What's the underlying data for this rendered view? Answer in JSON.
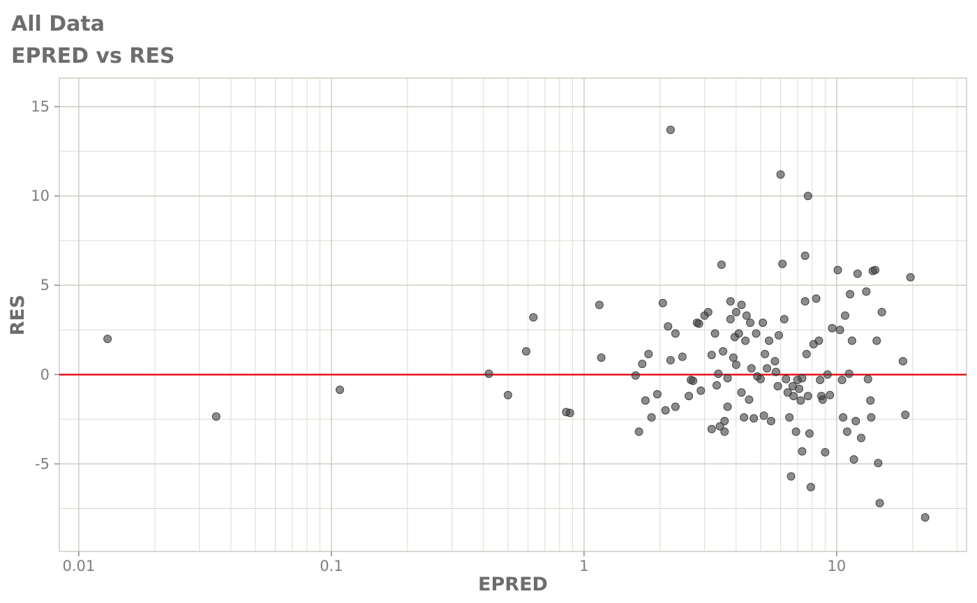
{
  "page": {
    "background": "#ffffff"
  },
  "chart_data": {
    "type": "scatter",
    "title": "All Data",
    "subtitle": "EPRED vs RES",
    "xlabel": "EPRED",
    "ylabel": "RES",
    "x_scale": "log10",
    "x_ticks": [
      0.01,
      0.1,
      1,
      10
    ],
    "x_tick_labels": [
      "0.01",
      "0.1",
      "1",
      "10"
    ],
    "y_ticks": [
      -5,
      0,
      5,
      10,
      15
    ],
    "y_tick_labels": [
      "-5",
      "0",
      "5",
      "10",
      "15"
    ],
    "x_range_log10": [
      -2.077,
      1.514
    ],
    "y_range": [
      -9.9,
      16.6
    ],
    "grid": {
      "major_color": "#ccc8bd",
      "minor_color": "#dedacf",
      "show": true
    },
    "legend": "none",
    "reference_line": {
      "y": 0,
      "color": "#e8111b",
      "width": 2.5
    },
    "point_style": {
      "fill": "#404040",
      "opacity": 0.6,
      "radius": 5.5
    },
    "text_colors": {
      "title": "#6d6d6d",
      "axis_label": "#6d6d6d",
      "tick_label": "#7e7e7e"
    },
    "points": [
      [
        0.013,
        2.0
      ],
      [
        0.035,
        -2.35
      ],
      [
        0.108,
        -0.85
      ],
      [
        0.42,
        0.05
      ],
      [
        0.5,
        -1.15
      ],
      [
        0.59,
        1.3
      ],
      [
        0.63,
        3.2
      ],
      [
        0.85,
        -2.1
      ],
      [
        0.88,
        -2.15
      ],
      [
        1.15,
        3.9
      ],
      [
        1.17,
        0.95
      ],
      [
        1.6,
        -0.05
      ],
      [
        1.65,
        -3.2
      ],
      [
        1.7,
        0.6
      ],
      [
        1.75,
        -1.45
      ],
      [
        1.8,
        1.15
      ],
      [
        1.85,
        -2.4
      ],
      [
        1.95,
        -1.1
      ],
      [
        2.05,
        4.0
      ],
      [
        2.1,
        -2.0
      ],
      [
        2.15,
        2.7
      ],
      [
        2.2,
        13.7
      ],
      [
        2.2,
        0.8
      ],
      [
        2.3,
        2.3
      ],
      [
        2.3,
        -1.8
      ],
      [
        2.45,
        1.0
      ],
      [
        2.6,
        -1.2
      ],
      [
        2.65,
        -0.3
      ],
      [
        2.7,
        -0.35
      ],
      [
        2.8,
        2.9
      ],
      [
        2.85,
        2.85
      ],
      [
        2.9,
        -0.9
      ],
      [
        3.0,
        3.3
      ],
      [
        3.1,
        3.5
      ],
      [
        3.2,
        1.1
      ],
      [
        3.2,
        -3.05
      ],
      [
        3.3,
        2.3
      ],
      [
        3.35,
        -0.6
      ],
      [
        3.4,
        0.05
      ],
      [
        3.45,
        -2.9
      ],
      [
        3.5,
        6.15
      ],
      [
        3.55,
        1.3
      ],
      [
        3.6,
        -2.6
      ],
      [
        3.6,
        -3.2
      ],
      [
        3.7,
        -1.8
      ],
      [
        3.7,
        -0.2
      ],
      [
        3.8,
        4.1
      ],
      [
        3.8,
        3.1
      ],
      [
        3.9,
        0.95
      ],
      [
        3.95,
        2.1
      ],
      [
        4.0,
        3.5
      ],
      [
        4.0,
        0.55
      ],
      [
        4.1,
        2.3
      ],
      [
        4.2,
        3.9
      ],
      [
        4.2,
        -1.0
      ],
      [
        4.3,
        -2.4
      ],
      [
        4.35,
        1.9
      ],
      [
        4.4,
        3.3
      ],
      [
        4.5,
        -1.4
      ],
      [
        4.55,
        2.9
      ],
      [
        4.6,
        0.35
      ],
      [
        4.7,
        -2.45
      ],
      [
        4.8,
        2.3
      ],
      [
        4.85,
        -0.1
      ],
      [
        5.0,
        -0.25
      ],
      [
        5.1,
        2.9
      ],
      [
        5.15,
        -2.3
      ],
      [
        5.2,
        1.15
      ],
      [
        5.3,
        0.35
      ],
      [
        5.4,
        1.9
      ],
      [
        5.5,
        -2.6
      ],
      [
        5.7,
        0.75
      ],
      [
        5.75,
        0.15
      ],
      [
        5.85,
        -0.65
      ],
      [
        5.9,
        2.2
      ],
      [
        6.0,
        11.2
      ],
      [
        6.1,
        6.2
      ],
      [
        6.2,
        3.1
      ],
      [
        6.3,
        -0.25
      ],
      [
        6.4,
        -1.0
      ],
      [
        6.5,
        -2.4
      ],
      [
        6.6,
        -5.7
      ],
      [
        6.7,
        -0.65
      ],
      [
        6.75,
        -1.2
      ],
      [
        6.9,
        -3.2
      ],
      [
        7.0,
        -0.3
      ],
      [
        7.1,
        -0.8
      ],
      [
        7.2,
        -1.45
      ],
      [
        7.3,
        -0.2
      ],
      [
        7.3,
        -4.3
      ],
      [
        7.5,
        4.1
      ],
      [
        7.5,
        6.65
      ],
      [
        7.6,
        1.15
      ],
      [
        7.7,
        10.0
      ],
      [
        7.7,
        -1.2
      ],
      [
        7.8,
        -3.3
      ],
      [
        7.9,
        -6.3
      ],
      [
        8.1,
        1.7
      ],
      [
        8.3,
        4.25
      ],
      [
        8.5,
        1.9
      ],
      [
        8.6,
        -0.3
      ],
      [
        8.7,
        -1.2
      ],
      [
        8.8,
        -1.4
      ],
      [
        9.0,
        -4.35
      ],
      [
        9.2,
        0.0
      ],
      [
        9.4,
        -1.15
      ],
      [
        9.6,
        2.6
      ],
      [
        10.1,
        5.85
      ],
      [
        10.3,
        2.5
      ],
      [
        10.5,
        -0.3
      ],
      [
        10.6,
        -2.4
      ],
      [
        10.8,
        3.3
      ],
      [
        11.0,
        -3.2
      ],
      [
        11.2,
        0.05
      ],
      [
        11.3,
        4.5
      ],
      [
        11.5,
        1.9
      ],
      [
        11.7,
        -4.75
      ],
      [
        11.9,
        -2.6
      ],
      [
        12.1,
        5.65
      ],
      [
        12.5,
        -3.55
      ],
      [
        13.1,
        4.65
      ],
      [
        13.3,
        -0.25
      ],
      [
        13.6,
        -1.45
      ],
      [
        13.7,
        -2.4
      ],
      [
        13.9,
        5.8
      ],
      [
        14.2,
        5.85
      ],
      [
        14.4,
        1.9
      ],
      [
        14.6,
        -4.95
      ],
      [
        14.8,
        -7.2
      ],
      [
        15.1,
        3.5
      ],
      [
        18.3,
        0.75
      ],
      [
        18.7,
        -2.25
      ],
      [
        19.6,
        5.45
      ],
      [
        22.4,
        -8.0
      ]
    ]
  }
}
